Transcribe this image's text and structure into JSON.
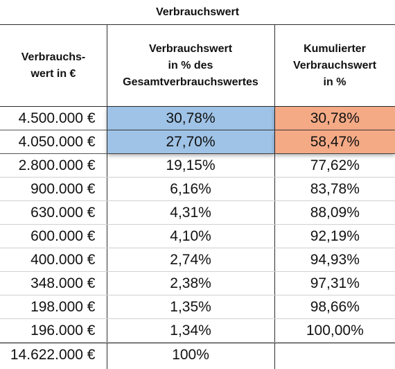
{
  "table": {
    "title": "Verbrauchswert",
    "headers": [
      "Verbrauchs-\nwert in €",
      "Verbrauchswert\nin % des\nGesamtverbrauchswertes",
      "Kumulierter\nVerbrauchswert\nin %"
    ],
    "rows": [
      [
        "4.500.000 €",
        "30,78%",
        "30,78%"
      ],
      [
        "4.050.000 €",
        "27,70%",
        "58,47%"
      ],
      [
        "2.800.000 €",
        "19,15%",
        "77,62%"
      ],
      [
        "900.000 €",
        "6,16%",
        "83,78%"
      ],
      [
        "630.000 €",
        "4,31%",
        "88,09%"
      ],
      [
        "600.000 €",
        "4,10%",
        "92,19%"
      ],
      [
        "400.000 €",
        "2,74%",
        "94,93%"
      ],
      [
        "348.000 €",
        "2,38%",
        "97,31%"
      ],
      [
        "198.000 €",
        "1,35%",
        "98,66%"
      ],
      [
        "196.000 €",
        "1,34%",
        "100,00%"
      ]
    ],
    "total": [
      "14.622.000 €",
      "100%",
      ""
    ],
    "highlight_colors": {
      "percent_column": "#9fc3e6",
      "cumulative_column": "#f5aa86"
    },
    "highlighted_rows": 2
  }
}
